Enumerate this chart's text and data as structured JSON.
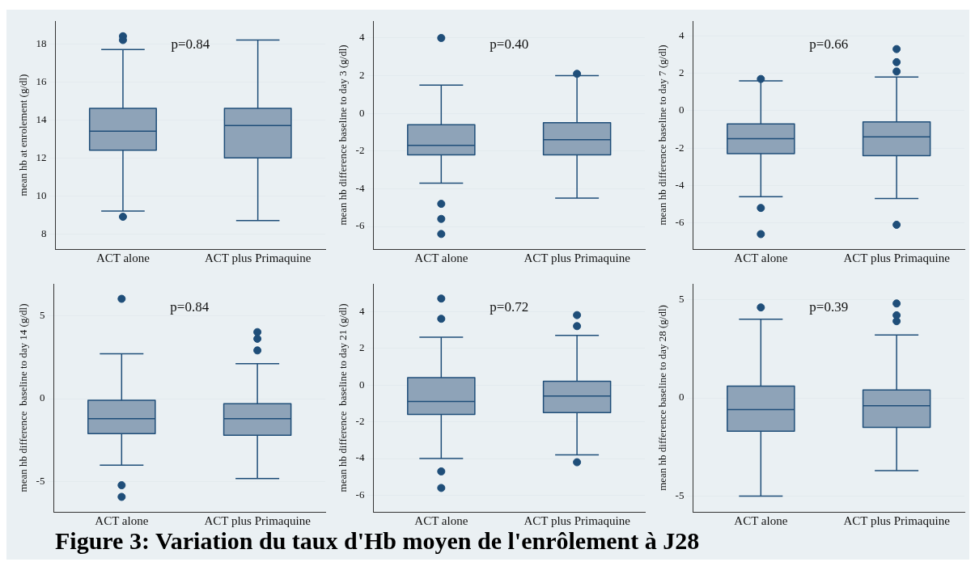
{
  "chart_data": [
    {
      "type": "box",
      "categories": [
        "ACT alone",
        "ACT plus Primaquine"
      ],
      "ylabel": "mean hb at enrolement (g/dl)",
      "color": "#8ea3b8",
      "grid": "y",
      "ylim": [
        7.2,
        19.2
      ],
      "yticks": [
        8,
        10,
        12,
        14,
        16,
        18
      ],
      "annotations": [
        "p=0.84"
      ],
      "boxes": [
        {
          "low": 9.2,
          "q1": 12.4,
          "median": 13.4,
          "q3": 14.6,
          "high": 17.7,
          "outliers": [
            18.2,
            18.4,
            8.9
          ]
        },
        {
          "low": 8.7,
          "q1": 12.0,
          "median": 13.7,
          "q3": 14.6,
          "high": 18.2
        }
      ]
    },
    {
      "type": "box",
      "categories": [
        "ACT alone",
        "ACT plus Primaquine"
      ],
      "ylabel": "mean hb difference baseline to day 3 (g/dl)",
      "color": "#8ea3b8",
      "grid": "y",
      "ylim": [
        -7.2,
        4.9
      ],
      "yticks": [
        -6,
        -4,
        -2,
        0,
        2,
        4
      ],
      "annotations": [
        "p=0.40"
      ],
      "boxes": [
        {
          "low": -3.7,
          "q1": -2.2,
          "median": -1.7,
          "q3": -0.6,
          "high": 1.5,
          "outliers": [
            4.0,
            -4.8,
            -5.6,
            -6.4
          ]
        },
        {
          "low": -4.5,
          "q1": -2.2,
          "median": -1.4,
          "q3": -0.5,
          "high": 2.0,
          "outliers": [
            2.1
          ]
        }
      ]
    },
    {
      "type": "box",
      "categories": [
        "ACT alone",
        "ACT plus Primaquine"
      ],
      "ylabel": "mean hb difference baseline to day 7 (g/dl)",
      "color": "#8ea3b8",
      "grid": "y",
      "ylim": [
        -7.4,
        4.8
      ],
      "yticks": [
        -6,
        -4,
        -2,
        0,
        2,
        4
      ],
      "annotations": [
        "p=0.66"
      ],
      "boxes": [
        {
          "low": -4.6,
          "q1": -2.3,
          "median": -1.5,
          "q3": -0.7,
          "high": 1.6,
          "outliers": [
            1.7,
            -5.2,
            -6.6
          ]
        },
        {
          "low": -4.7,
          "q1": -2.4,
          "median": -1.4,
          "q3": -0.6,
          "high": 1.8,
          "outliers": [
            3.3,
            2.6,
            2.1,
            -6.1
          ]
        }
      ]
    },
    {
      "type": "box",
      "categories": [
        "ACT alone",
        "ACT plus Primaquine"
      ],
      "ylabel": "mean hb difference  baseline to day 14 (g/dl)",
      "color": "#8ea3b8",
      "grid": "y",
      "ylim": [
        -6.8,
        6.9
      ],
      "yticks": [
        -5,
        0,
        5
      ],
      "annotations": [
        "p=0.84"
      ],
      "boxes": [
        {
          "low": -4.0,
          "q1": -2.1,
          "median": -1.2,
          "q3": -0.1,
          "high": 2.7,
          "outliers": [
            6.0,
            -5.2,
            -5.9
          ]
        },
        {
          "low": -4.8,
          "q1": -2.2,
          "median": -1.2,
          "q3": -0.3,
          "high": 2.1,
          "outliers": [
            4.0,
            3.6,
            2.9
          ]
        }
      ]
    },
    {
      "type": "box",
      "categories": [
        "ACT alone",
        "ACT plus Primaquine"
      ],
      "ylabel": "mean hb difference  baseline to day 21 (g/dl)",
      "color": "#8ea3b8",
      "grid": "y",
      "ylim": [
        -6.9,
        5.5
      ],
      "yticks": [
        -6,
        -4,
        -2,
        0,
        2,
        4
      ],
      "annotations": [
        "p=0.72"
      ],
      "boxes": [
        {
          "low": -4.0,
          "q1": -1.6,
          "median": -0.9,
          "q3": 0.4,
          "high": 2.6,
          "outliers": [
            4.7,
            3.6,
            -4.7,
            -5.6
          ]
        },
        {
          "low": -3.8,
          "q1": -1.5,
          "median": -0.6,
          "q3": 0.2,
          "high": 2.7,
          "outliers": [
            3.8,
            3.2,
            -4.2
          ]
        }
      ]
    },
    {
      "type": "box",
      "categories": [
        "ACT alone",
        "ACT plus Primaquine"
      ],
      "ylabel": "mean hb difference baseline to day 28 (g/dl)",
      "color": "#8ea3b8",
      "grid": "y",
      "ylim": [
        -5.8,
        5.8
      ],
      "yticks": [
        -5,
        0,
        5
      ],
      "annotations": [
        "p=0.39"
      ],
      "boxes": [
        {
          "low": -5.0,
          "q1": -1.7,
          "median": -0.6,
          "q3": 0.6,
          "high": 4.0,
          "outliers": [
            4.6
          ]
        },
        {
          "low": -3.7,
          "q1": -1.5,
          "median": -0.4,
          "q3": 0.4,
          "high": 3.2,
          "outliers": [
            4.8,
            4.2,
            3.9
          ]
        }
      ]
    },
    {
      "type": "other",
      "title": "Figure 3: Variation du taux d'Hb moyen de l'enrôlement à J28"
    }
  ]
}
